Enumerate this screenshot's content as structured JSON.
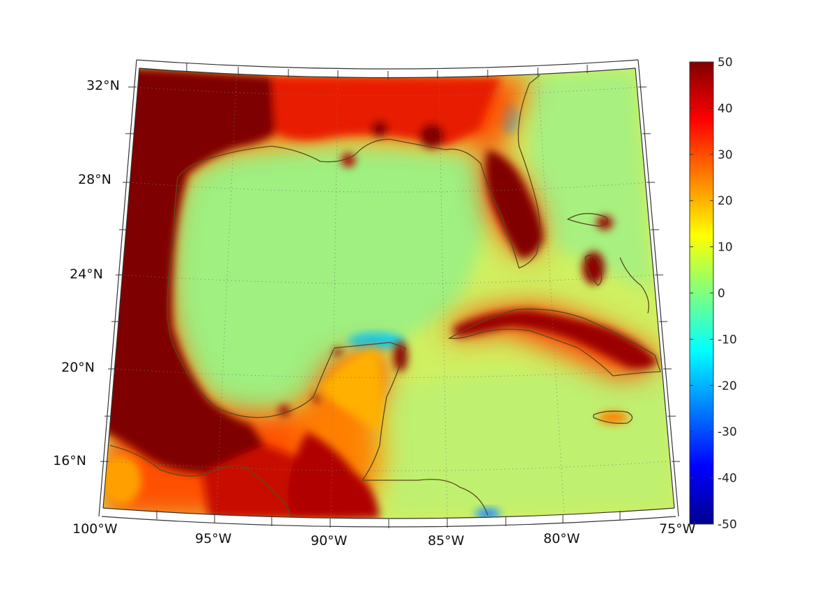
{
  "map": {
    "lat_labels": [
      "32°N",
      "28°N",
      "24°N",
      "20°N",
      "16°N"
    ],
    "lon_labels": [
      "100°W",
      "95°W",
      "90°W",
      "85°W",
      "80°W",
      "75°W"
    ]
  },
  "colorbar": {
    "colormap": "jet",
    "min": -50,
    "max": 50,
    "tick_labels": [
      "50",
      "40",
      "30",
      "20",
      "10",
      "0",
      "-10",
      "-20",
      "-30",
      "-40",
      "-50"
    ]
  },
  "colors": {
    "ocean_field": "#c8f060",
    "land_high": "#7f0000",
    "coastline": "#5a4a1a",
    "frame": "#444444"
  }
}
